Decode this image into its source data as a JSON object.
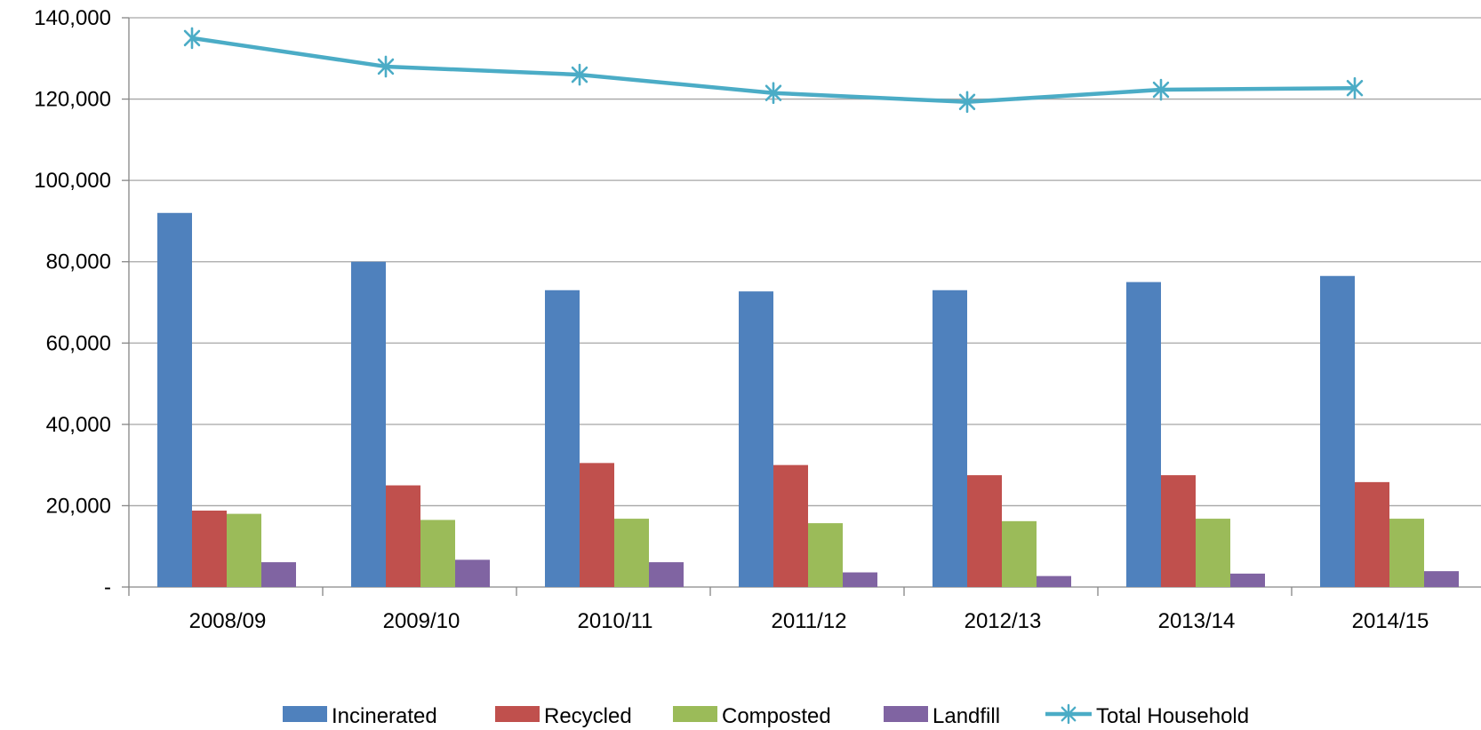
{
  "chart_data": {
    "type": "bar",
    "categories": [
      "2008/09",
      "2009/10",
      "2010/11",
      "2011/12",
      "2012/13",
      "2013/14",
      "2014/15"
    ],
    "series": [
      {
        "name": "Incinerated",
        "type": "bar",
        "color": "#4F81BD",
        "values": [
          92000,
          80000,
          73000,
          72700,
          73000,
          75000,
          76500
        ]
      },
      {
        "name": "Recycled",
        "type": "bar",
        "color": "#C0504D",
        "values": [
          18800,
          25000,
          30500,
          30000,
          27500,
          27500,
          25800
        ]
      },
      {
        "name": "Composted",
        "type": "bar",
        "color": "#9BBB59",
        "values": [
          18000,
          16500,
          16800,
          15700,
          16200,
          16800,
          16800
        ]
      },
      {
        "name": "Landfill",
        "type": "bar",
        "color": "#8064A2",
        "values": [
          6100,
          6700,
          6100,
          3600,
          2700,
          3300,
          3900
        ]
      },
      {
        "name": "Total Household",
        "type": "line",
        "marker": "asterisk",
        "color": "#4BACC6",
        "values": [
          135000,
          128000,
          126000,
          121500,
          119300,
          122300,
          122700
        ]
      }
    ],
    "y_ticks": [
      "-",
      "20,000",
      "40,000",
      "60,000",
      "80,000",
      "100,000",
      "120,000",
      "140,000"
    ],
    "ylim": [
      0,
      140000
    ],
    "grid": true,
    "legend_position": "bottom"
  }
}
